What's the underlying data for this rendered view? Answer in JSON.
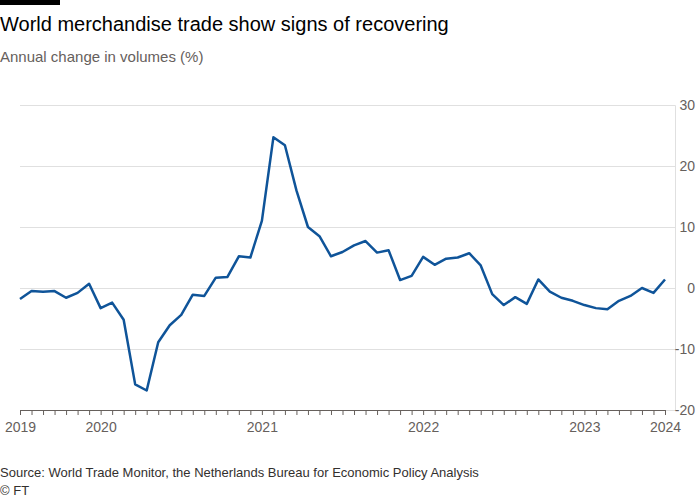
{
  "chart_data": {
    "type": "line",
    "title": "World merchandise trade show signs of recovering",
    "subtitle": "Annual change in volumes (%)",
    "source": "Source: World Trade Monitor, the Netherlands Bureau for Economic Policy Analysis",
    "credit": "© FT",
    "categories": [
      "2019",
      null,
      null,
      null,
      null,
      null,
      null,
      "2020",
      null,
      null,
      null,
      null,
      null,
      null,
      null,
      null,
      null,
      null,
      null,
      null,
      null,
      "2021",
      null,
      null,
      null,
      null,
      null,
      null,
      null,
      null,
      null,
      null,
      null,
      null,
      null,
      "2022",
      null,
      null,
      null,
      null,
      null,
      null,
      null,
      null,
      null,
      null,
      null,
      null,
      null,
      "2023",
      null,
      null,
      null,
      null,
      null,
      null,
      "2024"
    ],
    "values": [
      -1.8,
      -0.5,
      -0.6,
      -0.5,
      -1.6,
      -0.8,
      0.7,
      -3.3,
      -2.4,
      -5.2,
      -15.8,
      -16.8,
      -8.9,
      -6.1,
      -4.4,
      -1.1,
      -1.3,
      1.7,
      1.8,
      5.2,
      5.0,
      11.0,
      24.7,
      23.4,
      16.0,
      10.0,
      8.5,
      5.2,
      5.9,
      7.0,
      7.7,
      5.8,
      6.2,
      1.3,
      2.0,
      5.1,
      3.8,
      4.8,
      5.0,
      5.7,
      3.7,
      -1.0,
      -2.8,
      -1.5,
      -2.6,
      1.4,
      -0.6,
      -1.6,
      -2.1,
      -2.8,
      -3.3,
      -3.5,
      -2.1,
      -1.3,
      0,
      -0.8,
      1.4
    ],
    "color": "#0f5499",
    "ylim": [
      -20,
      30
    ],
    "yticks": [
      -20,
      -10,
      0,
      10,
      20,
      30
    ],
    "grid": true
  }
}
